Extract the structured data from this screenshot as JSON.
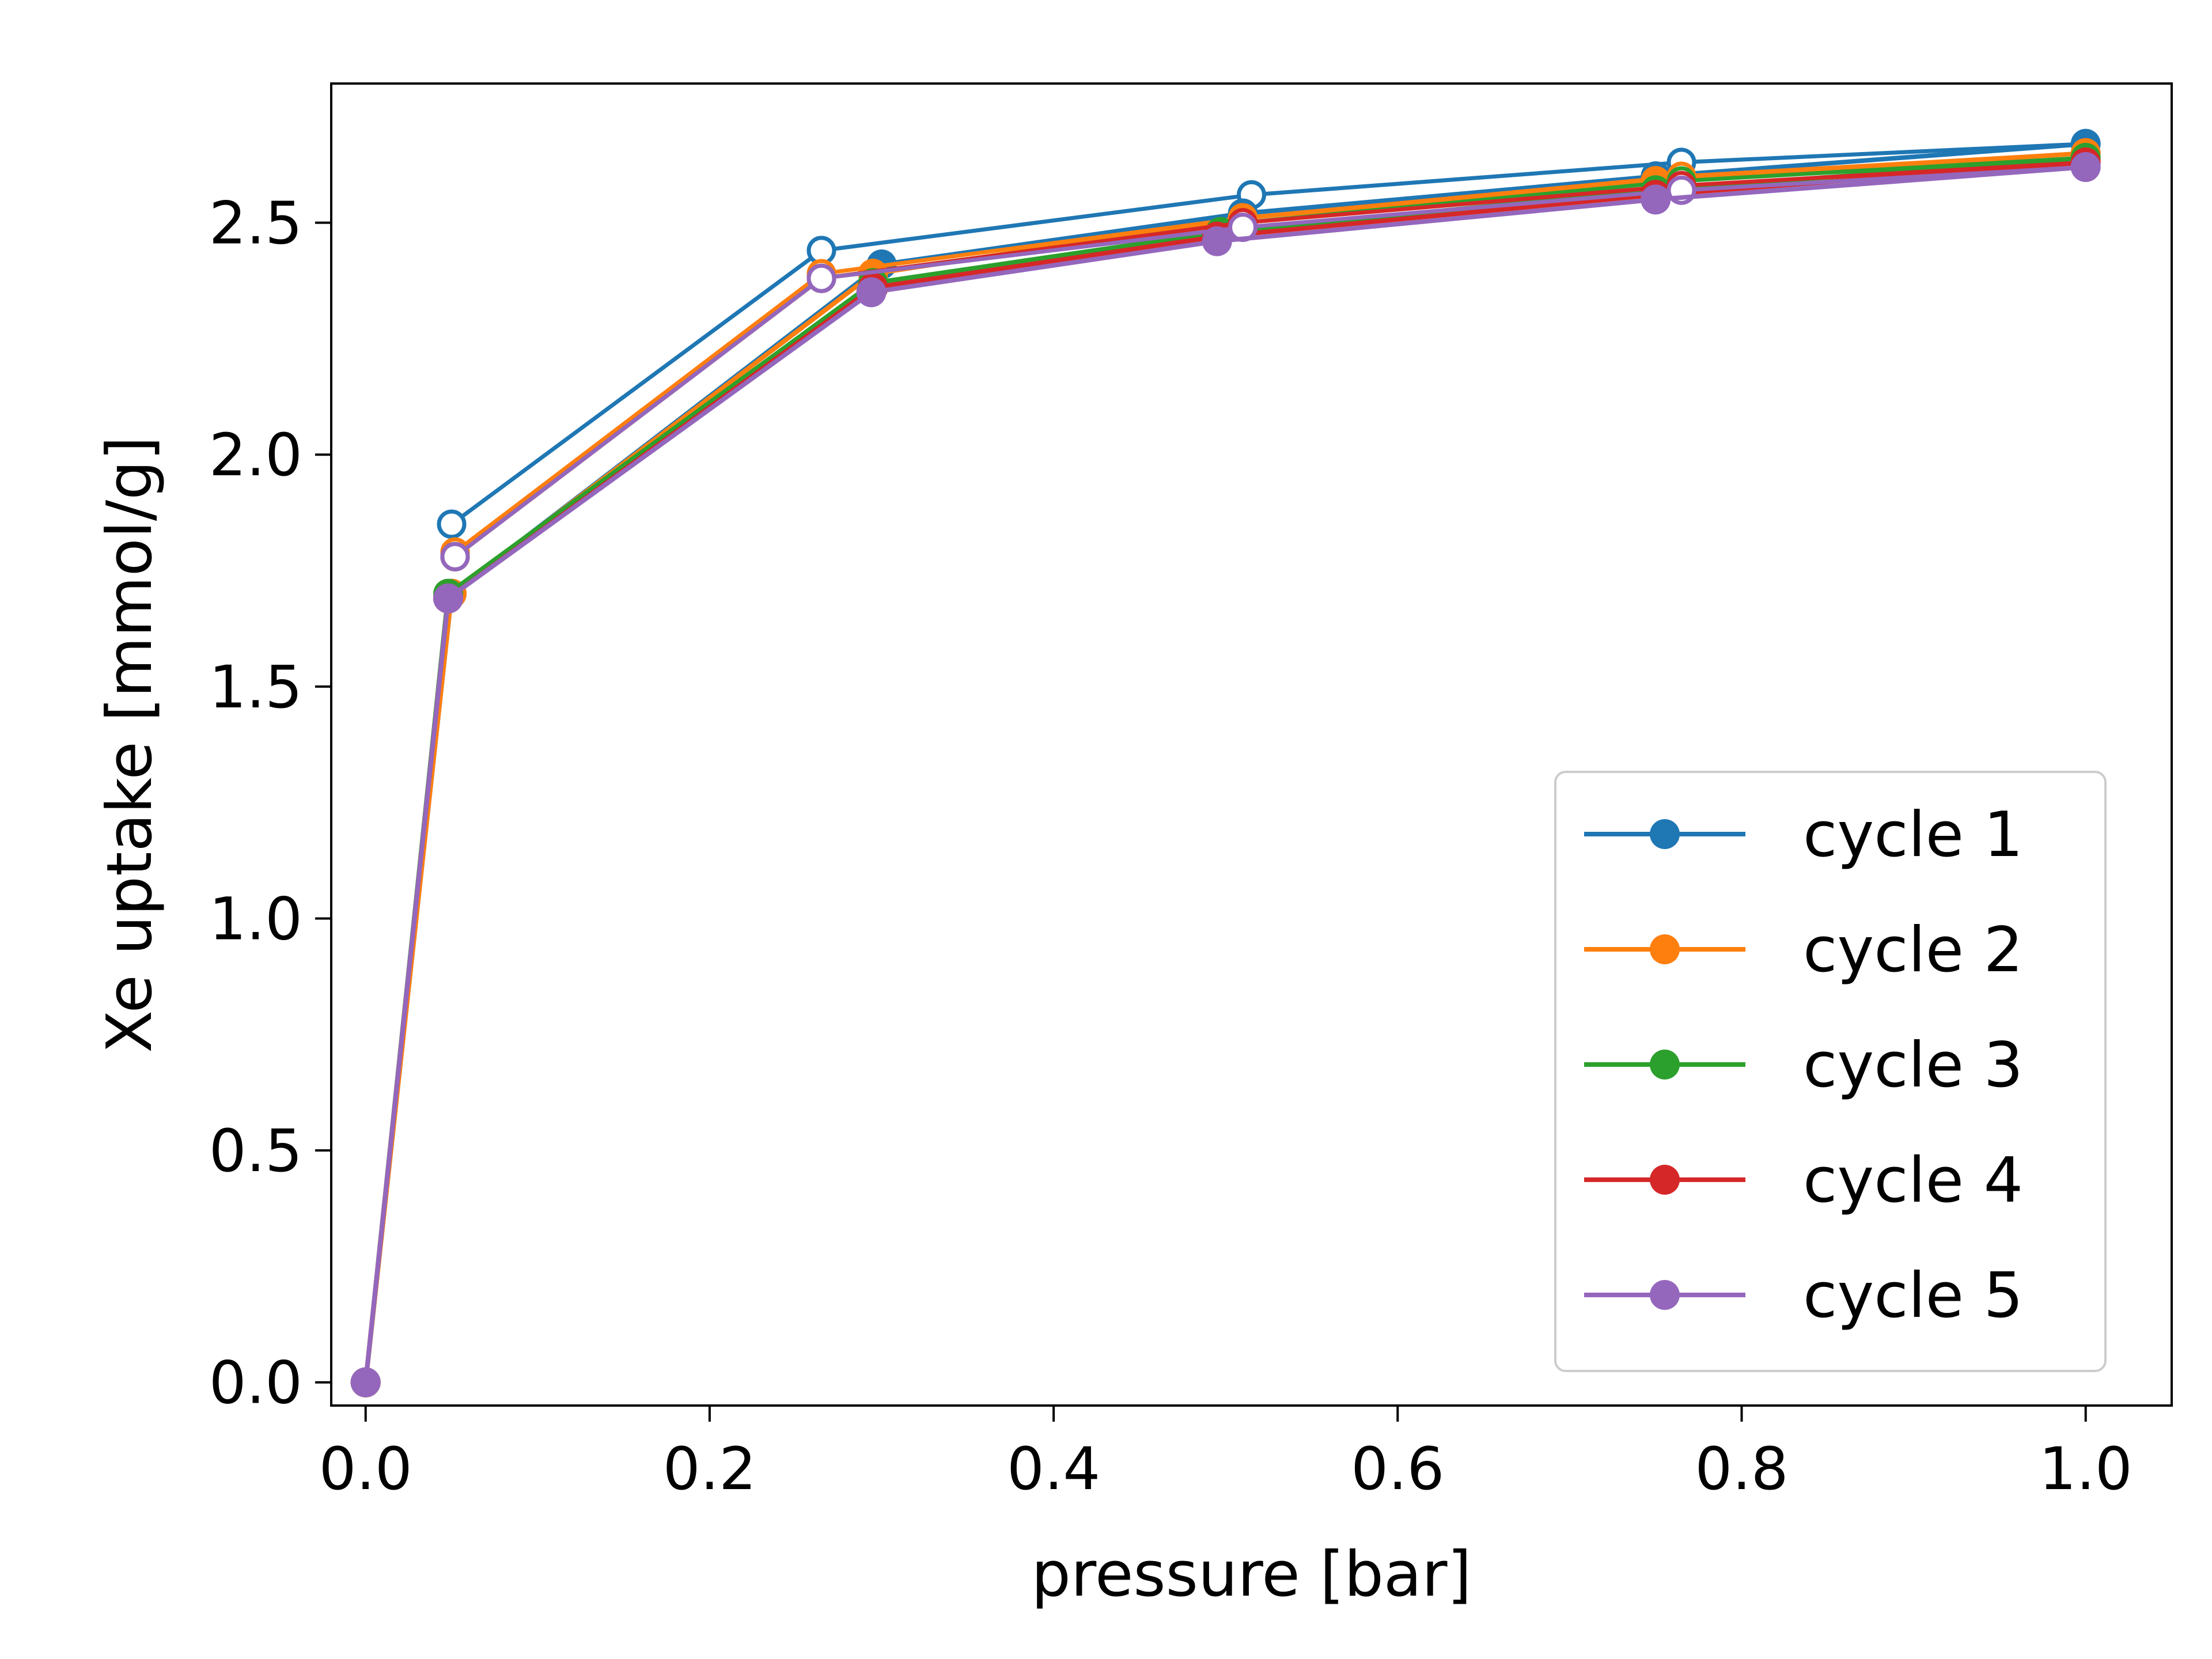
{
  "chart_data": {
    "type": "line",
    "title": "",
    "xlabel": "pressure [bar]",
    "ylabel": "Xe uptake [mmol/g]",
    "xlim": [
      -0.02,
      1.05
    ],
    "ylim": [
      -0.05,
      2.8
    ],
    "xticks": [
      0.0,
      0.2,
      0.4,
      0.6,
      0.8,
      1.0
    ],
    "xtick_labels": [
      "0.0",
      "0.2",
      "0.4",
      "0.6",
      "0.8",
      "1.0"
    ],
    "yticks": [
      0.0,
      0.5,
      1.0,
      1.5,
      2.0,
      2.5
    ],
    "ytick_labels": [
      "0.0",
      "0.5",
      "1.0",
      "1.5",
      "2.0",
      "2.5"
    ],
    "grid": false,
    "legend_position": "lower-right",
    "series": [
      {
        "name": "cycle 1",
        "color": "#1f77b4",
        "adsorption": {
          "x": [
            0.0,
            0.05,
            0.3,
            0.51,
            0.75,
            1.0
          ],
          "y": [
            0.0,
            1.7,
            2.41,
            2.52,
            2.6,
            2.67
          ]
        },
        "desorption": {
          "x": [
            1.0,
            0.765,
            0.515,
            0.265,
            0.05
          ],
          "y": [
            2.67,
            2.63,
            2.56,
            2.44,
            1.85
          ]
        }
      },
      {
        "name": "cycle 2",
        "color": "#ff7f0e",
        "adsorption": {
          "x": [
            0.0,
            0.05,
            0.295,
            0.51,
            0.75,
            1.0
          ],
          "y": [
            0.0,
            1.7,
            2.39,
            2.51,
            2.59,
            2.65
          ]
        },
        "desorption": {
          "x": [
            1.0,
            0.765,
            0.51,
            0.265,
            0.052
          ],
          "y": [
            2.65,
            2.6,
            2.51,
            2.39,
            1.79
          ]
        }
      },
      {
        "name": "cycle 3",
        "color": "#2ca02c",
        "adsorption": {
          "x": [
            0.0,
            0.048,
            0.295,
            0.497,
            0.75,
            1.0
          ],
          "y": [
            0.0,
            1.7,
            2.37,
            2.48,
            2.57,
            2.64
          ]
        },
        "desorption": {
          "x": [
            1.0,
            0.765,
            0.51,
            0.265,
            0.052
          ],
          "y": [
            2.64,
            2.59,
            2.5,
            2.38,
            1.78
          ]
        }
      },
      {
        "name": "cycle 4",
        "color": "#d62728",
        "adsorption": {
          "x": [
            0.0,
            0.048,
            0.295,
            0.495,
            0.75,
            1.0
          ],
          "y": [
            0.0,
            1.69,
            2.36,
            2.47,
            2.56,
            2.63
          ]
        },
        "desorption": {
          "x": [
            1.0,
            0.765,
            0.51,
            0.265,
            0.052
          ],
          "y": [
            2.63,
            2.58,
            2.5,
            2.38,
            1.78
          ]
        }
      },
      {
        "name": "cycle 5",
        "color": "#9467bd",
        "adsorption": {
          "x": [
            0.0,
            0.048,
            0.294,
            0.495,
            0.75,
            1.0
          ],
          "y": [
            0.0,
            1.69,
            2.35,
            2.46,
            2.55,
            2.62
          ]
        },
        "desorption": {
          "x": [
            1.0,
            0.765,
            0.51,
            0.265,
            0.052
          ],
          "y": [
            2.62,
            2.57,
            2.49,
            2.38,
            1.78
          ]
        }
      }
    ]
  }
}
